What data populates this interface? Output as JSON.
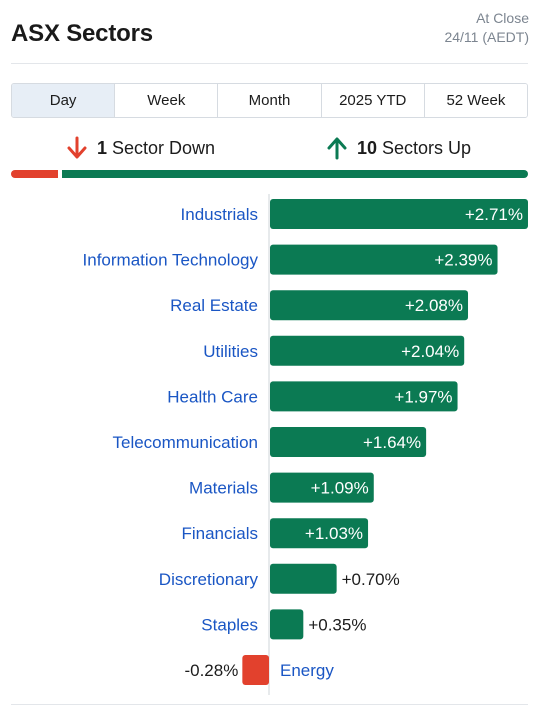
{
  "header": {
    "title": "ASX Sectors",
    "status_line1": "At Close",
    "status_line2": "24/11 (AEDT)"
  },
  "tabs": [
    {
      "label": "Day",
      "active": true
    },
    {
      "label": "Week",
      "active": false
    },
    {
      "label": "Month",
      "active": false
    },
    {
      "label": "2025 YTD",
      "active": false
    },
    {
      "label": "52 Week",
      "active": false
    }
  ],
  "summary": {
    "down_count": "1",
    "down_label": "Sector Down",
    "up_count": "10",
    "up_label": "Sectors Up"
  },
  "colors": {
    "positive": "#0b7a53",
    "negative": "#e2412d",
    "label": "#1a56c4",
    "active_tab": "#e7eef6"
  },
  "chart_data": {
    "type": "bar",
    "orientation": "horizontal",
    "categories": [
      "Industrials",
      "Information Technology",
      "Real Estate",
      "Utilities",
      "Health Care",
      "Telecommunication",
      "Materials",
      "Financials",
      "Discretionary",
      "Staples",
      "Energy"
    ],
    "values": [
      2.71,
      2.39,
      2.08,
      2.04,
      1.97,
      1.64,
      1.09,
      1.03,
      0.7,
      0.35,
      -0.28
    ],
    "value_labels": [
      "+2.71%",
      "+2.39%",
      "+2.08%",
      "+2.04%",
      "+1.97%",
      "+1.64%",
      "+1.09%",
      "+1.03%",
      "+0.70%",
      "+0.35%",
      "-0.28%"
    ],
    "xlabel": "",
    "ylabel": ""
  }
}
